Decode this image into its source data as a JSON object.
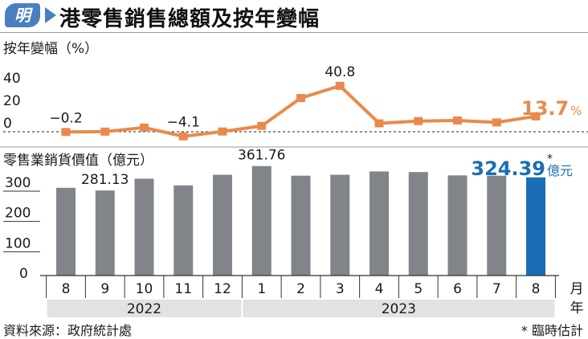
{
  "header": {
    "logo_text": "明",
    "title": "港零售銷售總額及按年變幅"
  },
  "colors": {
    "line": "#e98a4c",
    "bar": "#818589",
    "bar_highlight": "#1a6eb5",
    "year_band": "#e2e2e2",
    "logo": "#4a7fbf"
  },
  "chart_data": [
    {
      "type": "line",
      "title": "按年變幅（%）",
      "ylabel": "%",
      "yticks": [
        40,
        20,
        0
      ],
      "ylim": [
        -5,
        45
      ],
      "categories": [
        "8",
        "9",
        "10",
        "11",
        "12",
        "1",
        "2",
        "3",
        "4",
        "5",
        "6",
        "7",
        "8"
      ],
      "values": [
        -0.2,
        0.1,
        3.7,
        -4.1,
        0.2,
        5.2,
        30.0,
        40.8,
        7.5,
        9.5,
        10.0,
        8.3,
        13.7
      ],
      "labels": [
        {
          "index": 0,
          "text": "−0.2"
        },
        {
          "index": 3,
          "text": "−4.1"
        },
        {
          "index": 7,
          "text": "40.8"
        },
        {
          "index": 12,
          "text": "13.7",
          "unit": "%"
        }
      ]
    },
    {
      "type": "bar",
      "title": "零售業銷貨價值（億元）",
      "ylabel": "億元",
      "yticks": [
        300,
        200,
        100,
        0
      ],
      "ylim": [
        0,
        380
      ],
      "categories": [
        "8",
        "9",
        "10",
        "11",
        "12",
        "1",
        "2",
        "3",
        "4",
        "5",
        "6",
        "7",
        "8"
      ],
      "values": [
        290,
        281.13,
        320,
        298,
        333,
        361.76,
        330,
        333,
        344,
        342,
        331,
        330,
        324.39
      ],
      "highlight_index": 12,
      "labels": [
        {
          "index": 1,
          "text": "281.13"
        },
        {
          "index": 5,
          "text": "361.76"
        },
        {
          "index": 12,
          "text": "324.39",
          "mark": "*",
          "unit": "億元"
        }
      ],
      "years": [
        {
          "label": "2022",
          "from": 0,
          "to": 4
        },
        {
          "label": "2023",
          "from": 5,
          "to": 12
        }
      ],
      "xlabel": [
        "月",
        "年"
      ]
    }
  ],
  "footer": {
    "source": "資料來源：政府統計處",
    "note": "* 臨時估計"
  }
}
